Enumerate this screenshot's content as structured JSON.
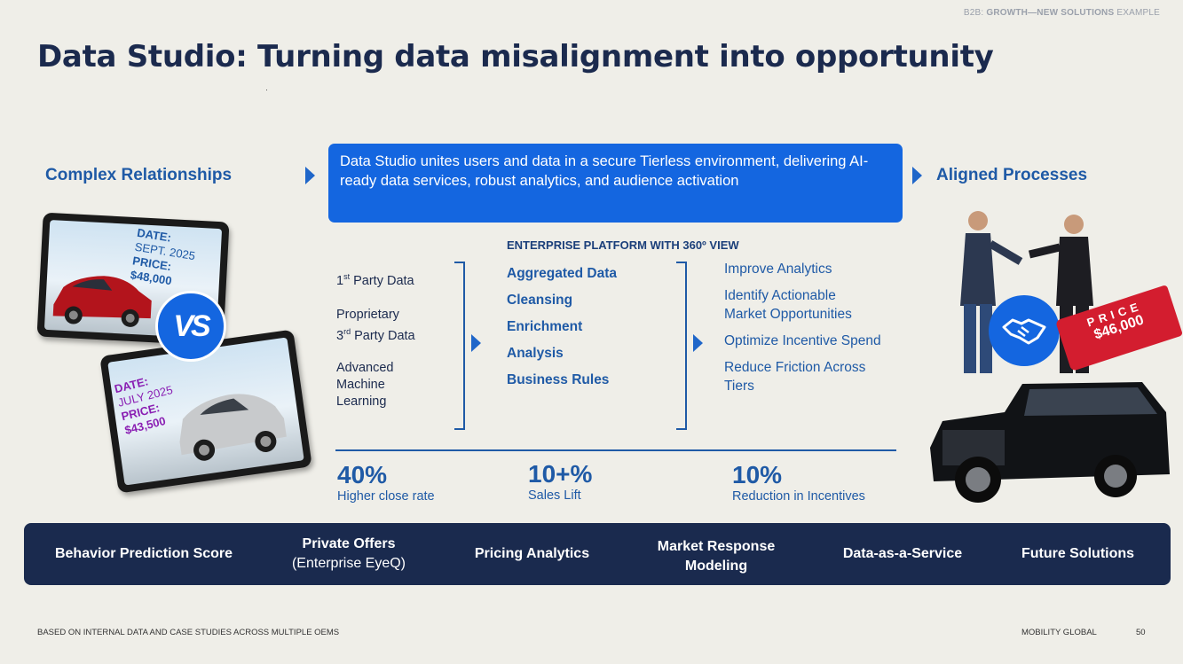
{
  "header": {
    "tag_prefix": "B2B:",
    "tag_bold": "GROWTH—NEW SOLUTIONS",
    "tag_suffix": "EXAMPLE",
    "title": "Data Studio: Turning data misalignment into opportunity"
  },
  "left_heading": "Complex Relationships",
  "right_heading": "Aligned Processes",
  "banner_text": "Data Studio unites users and data in a secure Tierless environment, delivering AI-ready data services, robust analytics, and audience activation",
  "tablet_top": {
    "date_label": "DATE:",
    "date": "SEPT. 2025",
    "price_label": "PRICE:",
    "price": "$48,000"
  },
  "tablet_bottom": {
    "date_label": "DATE:",
    "date": "JULY 2025",
    "price_label": "PRICE:",
    "price": "$43,500"
  },
  "vs_label": "VS",
  "price_tag": {
    "label": "PRICE",
    "value": "$46,000"
  },
  "enterprise_heading": "ENTERPRISE PLATFORM WITH 360º VIEW",
  "inputs": {
    "first_a": "1",
    "first_sup": "st",
    "first_b": " Party Data",
    "prop": "Proprietary",
    "third_a": "3",
    "third_sup": "rd",
    "third_b": " Party Data",
    "adv1": "Advanced",
    "adv2": "Machine",
    "adv3": "Learning"
  },
  "platform": [
    "Aggregated Data",
    "Cleansing",
    "Enrichment",
    "Analysis",
    "Business Rules"
  ],
  "outcomes": {
    "o1": "Improve Analytics",
    "o2a": "Identify Actionable",
    "o2b": "Market Opportunities",
    "o3": "Optimize Incentive Spend",
    "o4a": "Reduce Friction Across",
    "o4b": "Tiers"
  },
  "stats": [
    {
      "value": "40%",
      "label": "Higher close rate"
    },
    {
      "value": "10+%",
      "label": "Sales Lift"
    },
    {
      "value": "10%",
      "label": "Reduction in Incentives"
    }
  ],
  "solutions": {
    "s1": "Behavior Prediction Score",
    "s2a": "Private Offers",
    "s2b": "(Enterprise EyeQ)",
    "s3": "Pricing Analytics",
    "s4a": "Market Response",
    "s4b": "Modeling",
    "s5": "Data-as-a-Service",
    "s6": "Future Solutions"
  },
  "footer": {
    "note": "BASED ON INTERNAL DATA AND CASE STUDIES ACROSS MULTIPLE OEMS",
    "brand": "MOBILITY GLOBAL",
    "page": "50"
  }
}
